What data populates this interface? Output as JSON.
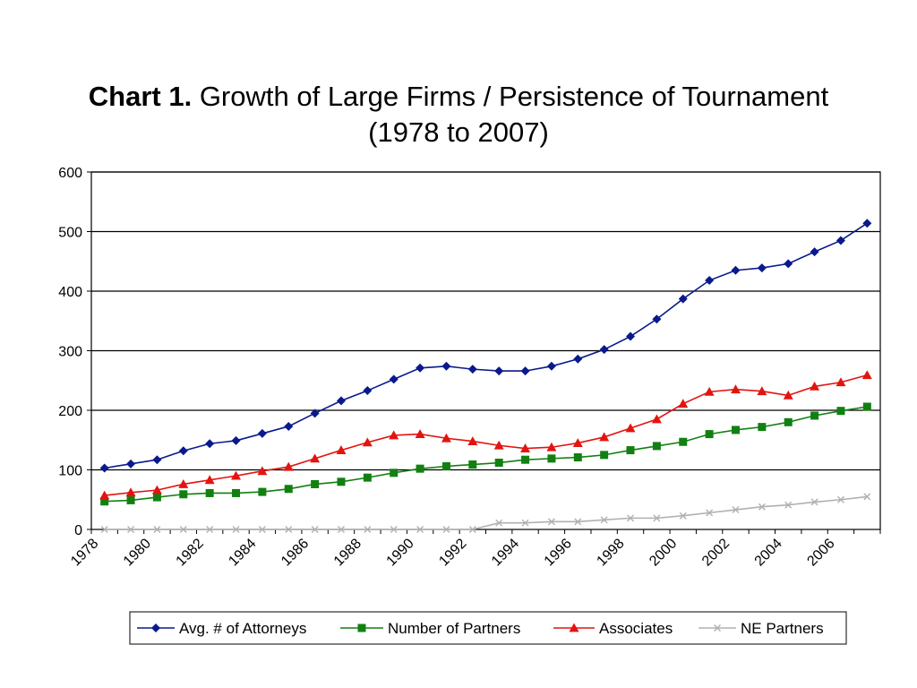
{
  "page": {
    "title_bold": "Chart 1.",
    "title_rest": " Growth of Large Firms / Persistence of Tournament",
    "title_line2": "(1978 to 2007)"
  },
  "chart_data": {
    "type": "line",
    "title": "Chart 1. Growth of Large Firms / Persistence of Tournament (1978 to 2007)",
    "xlabel": "",
    "ylabel": "",
    "ylim": [
      0,
      600
    ],
    "yticks": [
      "0",
      "100",
      "200",
      "300",
      "400",
      "500",
      "600"
    ],
    "xticks": [
      "1978",
      "1980",
      "1982",
      "1984",
      "1986",
      "1988",
      "1990",
      "1992",
      "1994",
      "1996",
      "1998",
      "2000",
      "2002",
      "2004",
      "2006"
    ],
    "grid": true,
    "legend_position": "bottom",
    "x": [
      1978,
      1979,
      1980,
      1981,
      1982,
      1983,
      1984,
      1985,
      1986,
      1987,
      1988,
      1989,
      1990,
      1991,
      1992,
      1993,
      1994,
      1995,
      1996,
      1997,
      1998,
      1999,
      2000,
      2001,
      2002,
      2003,
      2004,
      2005,
      2006,
      2007
    ],
    "series": [
      {
        "name": "Avg. # of Attorneys",
        "color": "#0a1a8c",
        "marker": "diamond",
        "values": [
          103,
          110,
          117,
          132,
          144,
          149,
          161,
          173,
          195,
          216,
          233,
          252,
          271,
          274,
          269,
          266,
          266,
          274,
          286,
          302,
          324,
          353,
          387,
          418,
          435,
          439,
          446,
          466,
          485,
          514
        ]
      },
      {
        "name": "Number of Partners",
        "color": "#118011",
        "marker": "square",
        "values": [
          47,
          49,
          54,
          59,
          61,
          61,
          63,
          68,
          76,
          80,
          87,
          95,
          102,
          106,
          109,
          112,
          117,
          119,
          121,
          125,
          133,
          140,
          147,
          160,
          167,
          172,
          180,
          191,
          199,
          206
        ]
      },
      {
        "name": "Associates",
        "color": "#e3140f",
        "marker": "triangle",
        "values": [
          57,
          62,
          66,
          76,
          83,
          90,
          98,
          105,
          119,
          133,
          146,
          158,
          160,
          153,
          148,
          141,
          136,
          138,
          145,
          155,
          170,
          185,
          211,
          231,
          235,
          232,
          225,
          240,
          247,
          259
        ]
      },
      {
        "name": "NE Partners",
        "color": "#b0b0b0",
        "marker": "x",
        "values": [
          0,
          0,
          0,
          0,
          0,
          0,
          0,
          0,
          0,
          0,
          0,
          0,
          0,
          0,
          0,
          11,
          11,
          13,
          13,
          16,
          19,
          19,
          23,
          28,
          33,
          38,
          41,
          46,
          50,
          55
        ]
      }
    ]
  }
}
